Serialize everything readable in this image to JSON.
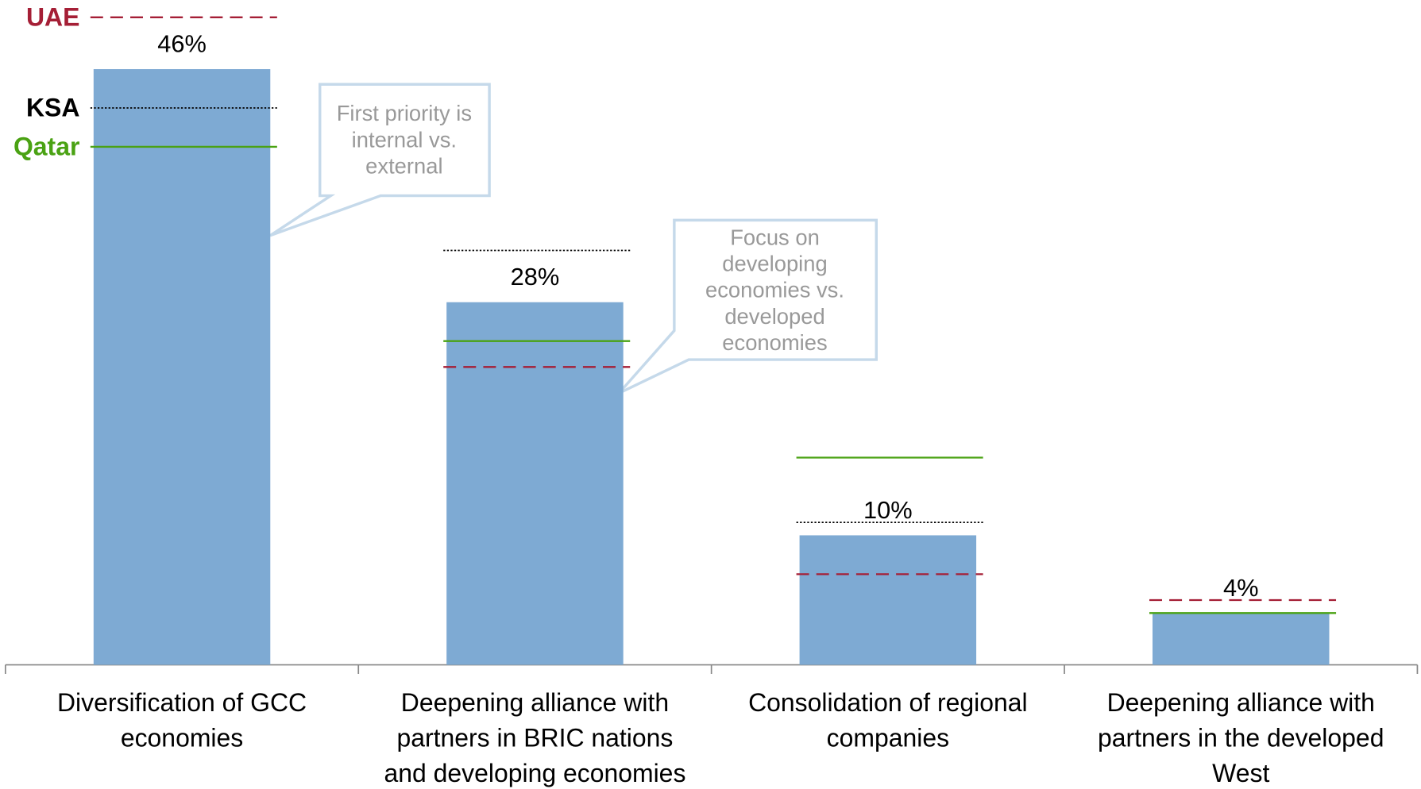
{
  "chart_data": {
    "type": "bar",
    "categories": [
      [
        "Diversification of GCC",
        "economies"
      ],
      [
        "Deepening alliance with",
        "partners in BRIC nations",
        "and developing economies"
      ],
      [
        "Consolidation of regional",
        "companies"
      ],
      [
        "Deepening alliance with",
        "partners in the developed",
        "West"
      ]
    ],
    "values": [
      46,
      28,
      10,
      4
    ],
    "value_labels": [
      "46%",
      "28%",
      "10%",
      "4%"
    ],
    "color": "#7eaad3",
    "ylim": [
      0,
      51
    ],
    "series": [
      {
        "name": "UAE",
        "color": "#a51f36",
        "line_style": "dashed",
        "values": [
          50,
          23,
          7,
          5
        ]
      },
      {
        "name": "KSA",
        "color": "#000000",
        "line_style": "dotted",
        "values": [
          43,
          32,
          11,
          4
        ]
      },
      {
        "name": "Qatar",
        "color": "#4aa213",
        "line_style": "solid",
        "values": [
          40,
          25,
          16,
          4
        ]
      }
    ],
    "annotations": [
      {
        "text": [
          "First priority is",
          "internal vs.",
          "external"
        ]
      },
      {
        "text": [
          "Focus on",
          "developing",
          "economies vs.",
          "developed",
          "economies"
        ]
      }
    ]
  }
}
